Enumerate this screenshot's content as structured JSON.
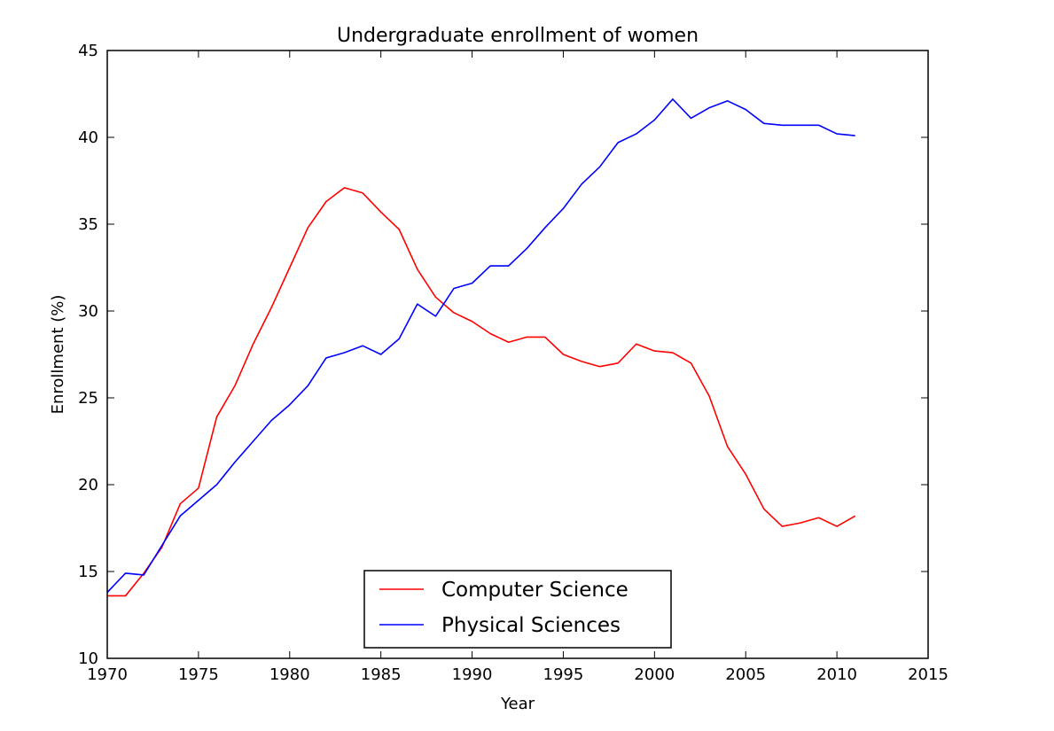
{
  "chart_data": {
    "type": "line",
    "title": "Undergraduate enrollment of women",
    "xlabel": "Year",
    "ylabel": "Enrollment (%)",
    "xlim": [
      1970,
      2015
    ],
    "ylim": [
      10,
      45
    ],
    "xticks": [
      1970,
      1975,
      1980,
      1985,
      1990,
      1995,
      2000,
      2005,
      2010,
      2015
    ],
    "yticks": [
      10,
      15,
      20,
      25,
      30,
      35,
      40,
      45
    ],
    "grid": false,
    "legend_position": "lower-center",
    "x": [
      1970,
      1971,
      1972,
      1973,
      1974,
      1975,
      1976,
      1977,
      1978,
      1979,
      1980,
      1981,
      1982,
      1983,
      1984,
      1985,
      1986,
      1987,
      1988,
      1989,
      1990,
      1991,
      1992,
      1993,
      1994,
      1995,
      1996,
      1997,
      1998,
      1999,
      2000,
      2001,
      2002,
      2003,
      2004,
      2005,
      2006,
      2007,
      2008,
      2009,
      2010,
      2011
    ],
    "series": [
      {
        "name": "Computer Science",
        "color": "#ff0000",
        "values": [
          13.6,
          13.6,
          14.9,
          16.4,
          18.9,
          19.8,
          23.9,
          25.7,
          28.1,
          30.2,
          32.5,
          34.8,
          36.3,
          37.1,
          36.8,
          35.7,
          34.7,
          32.4,
          30.8,
          29.9,
          29.4,
          28.7,
          28.2,
          28.5,
          28.5,
          27.5,
          27.1,
          26.8,
          27.0,
          28.1,
          27.7,
          27.6,
          27.0,
          25.1,
          22.2,
          20.6,
          18.6,
          17.6,
          17.8,
          18.1,
          17.6,
          18.2
        ]
      },
      {
        "name": "Physical Sciences",
        "color": "#0000ff",
        "values": [
          13.8,
          14.9,
          14.8,
          16.5,
          18.2,
          19.1,
          20.0,
          21.3,
          22.5,
          23.7,
          24.6,
          25.7,
          27.3,
          27.6,
          28.0,
          27.5,
          28.4,
          30.4,
          29.7,
          31.3,
          31.6,
          32.6,
          32.6,
          33.6,
          34.8,
          35.9,
          37.3,
          38.3,
          39.7,
          40.2,
          41.0,
          42.2,
          41.1,
          41.7,
          42.1,
          41.6,
          40.8,
          40.7,
          40.7,
          40.7,
          40.2,
          40.1
        ]
      }
    ]
  }
}
